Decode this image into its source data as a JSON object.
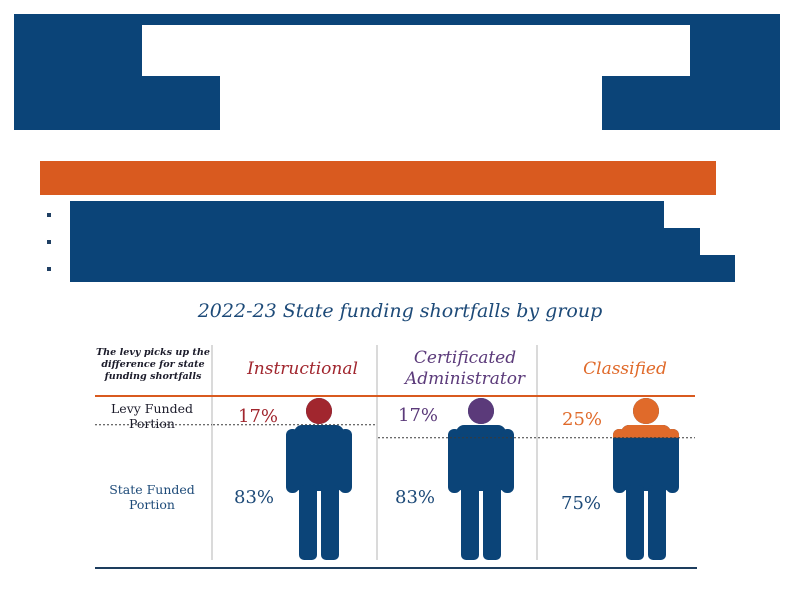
{
  "colors": {
    "header_blue": "#0b4478",
    "accent_orange": "#d95a1f",
    "figure_blue": "#0b4478",
    "instructional": "#a1262e",
    "certificated": "#5b3a7a",
    "classified": "#e06a2a",
    "state_label": "#1d4a78"
  },
  "chart_data": {
    "type": "table",
    "title": "2022-23 State funding shortfalls by group",
    "note": "The levy picks up the difference for state funding shortfalls",
    "rows": [
      "Levy Funded Portion",
      "State Funded Portion"
    ],
    "groups": [
      {
        "name": "Instructional",
        "levy": 17,
        "state": 83,
        "levy_label": "17%",
        "state_label": "83%",
        "color": "#a1262e"
      },
      {
        "name": "Certificated Administrator",
        "levy": 17,
        "state": 83,
        "levy_label": "17%",
        "state_label": "83%",
        "color": "#5b3a7a"
      },
      {
        "name": "Classified",
        "levy": 25,
        "state": 75,
        "levy_label": "25%",
        "state_label": "75%",
        "color": "#e06a2a"
      }
    ]
  }
}
